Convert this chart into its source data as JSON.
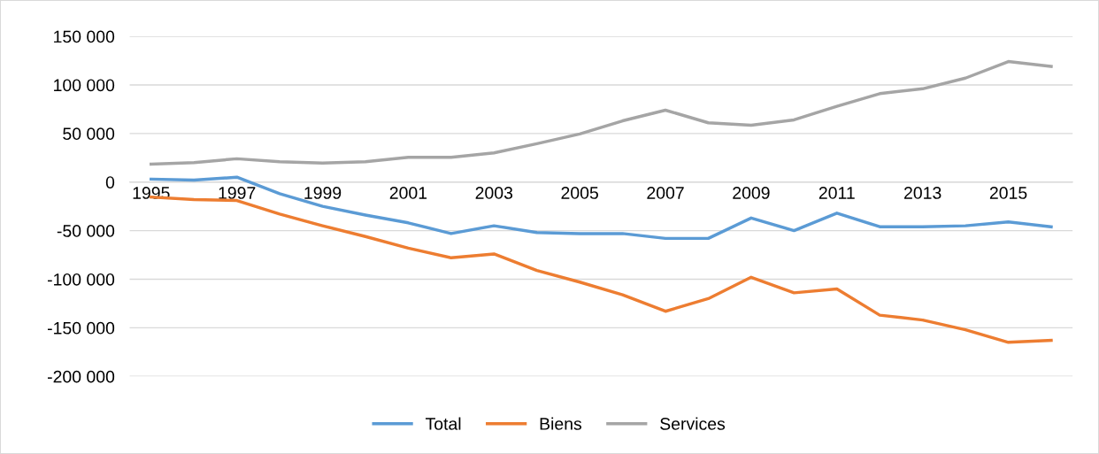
{
  "chart_data": {
    "type": "line",
    "categories": [
      "1995",
      null,
      "1997",
      null,
      "1999",
      null,
      "2001",
      null,
      "2003",
      null,
      "2005",
      null,
      "2007",
      null,
      "2009",
      null,
      "2011",
      null,
      "2013",
      null,
      "2015",
      null
    ],
    "series": [
      {
        "name": "Total",
        "color": "#5b9bd5",
        "values": [
          3000,
          2000,
          5000,
          -12000,
          -25000,
          -34000,
          -42000,
          -53000,
          -45000,
          -52000,
          -53000,
          -53000,
          -58000,
          -58000,
          -37000,
          -50000,
          -32000,
          -46000,
          -46000,
          -45000,
          -41000,
          -46000
        ]
      },
      {
        "name": "Biens",
        "color": "#ed7d31",
        "values": [
          -15500,
          -18000,
          -19000,
          -33000,
          -45000,
          -56000,
          -68000,
          -78000,
          -74000,
          -91000,
          -103000,
          -116000,
          -133000,
          -120000,
          -98000,
          -114000,
          -110000,
          -137000,
          -142000,
          -152000,
          -165000,
          -163000
        ]
      },
      {
        "name": "Services",
        "color": "#a5a5a5",
        "values": [
          18500,
          20000,
          24000,
          21000,
          19500,
          21000,
          25500,
          25500,
          30000,
          39500,
          49500,
          63000,
          74000,
          61000,
          58500,
          64000,
          78000,
          91000,
          96000,
          107000,
          124000,
          119000
        ]
      }
    ],
    "ylim": [
      -200000,
      150000
    ],
    "yticks": [
      {
        "value": -200000,
        "label": "-200 000"
      },
      {
        "value": -150000,
        "label": "-150 000"
      },
      {
        "value": -100000,
        "label": "-100 000"
      },
      {
        "value": -50000,
        "label": "-50 000"
      },
      0,
      {
        "value": 50000,
        "label": "50 000"
      },
      {
        "value": 100000,
        "label": "100 000"
      },
      {
        "value": 150000,
        "label": "150 000"
      }
    ],
    "grid": "y",
    "legend": "bottom",
    "marker": "none",
    "line_style": "solid"
  }
}
